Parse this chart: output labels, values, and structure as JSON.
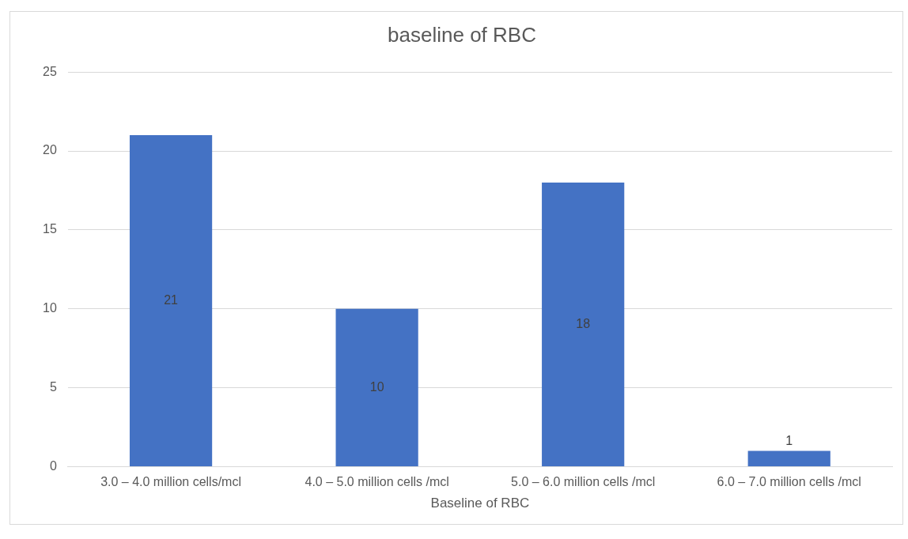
{
  "chart_data": {
    "type": "bar",
    "title": "baseline of RBC",
    "xlabel": "Baseline of RBC",
    "categories": [
      "3.0 – 4.0 million cells/mcl",
      "4.0 – 5.0 million cells /mcl",
      "5.0 – 6.0 million cells /mcl",
      "6.0 – 7.0 million cells /mcl"
    ],
    "values": [
      21,
      10,
      18,
      1
    ],
    "color": "#4472c4",
    "ylim": [
      0,
      25
    ],
    "yticks": [
      0,
      5,
      10,
      15,
      20,
      25
    ],
    "grid": "y",
    "data_labels": true,
    "legend": false
  }
}
